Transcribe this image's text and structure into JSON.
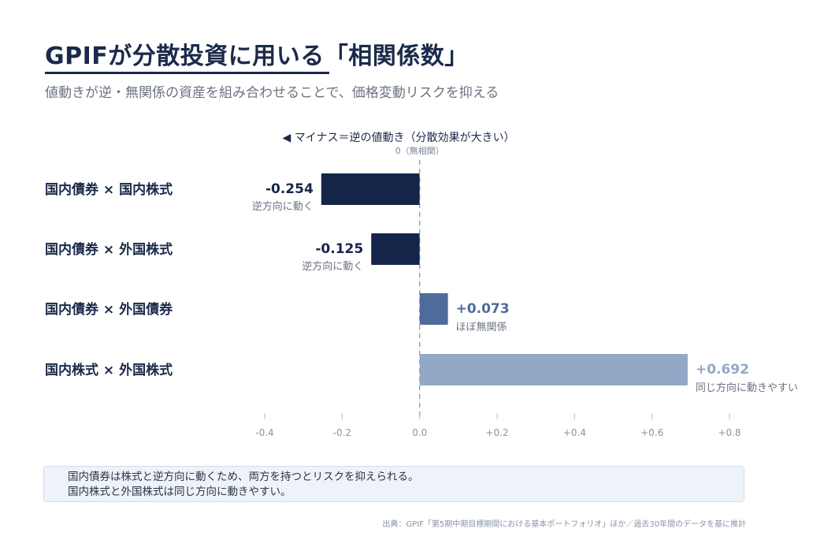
{
  "header": {
    "title": "GPIFが分散投資に用いる「相関係数」",
    "subtitle": "値動きが逆・無関係の資産を組み合わせることで、価格変動リスクを抑える"
  },
  "chart_data": {
    "type": "bar",
    "orientation": "horizontal",
    "direction_label": "◀ マイナス＝逆の値動き（分散効果が大きい）",
    "zero_label": "0（無相関）",
    "categories": [
      "国内債券 × 国内株式",
      "国内債券 × 外国株式",
      "国内債券 × 外国債券",
      "国内株式 × 外国株式"
    ],
    "values": [
      -0.254,
      -0.125,
      0.073,
      0.692
    ],
    "value_labels": [
      "-0.254",
      "-0.125",
      "+0.073",
      "+0.692"
    ],
    "annotations": [
      "逆方向に動く",
      "逆方向に動く",
      "ほぼ無関係",
      "同じ方向に動きやすい"
    ],
    "bar_colors": [
      "#15254a",
      "#15254a",
      "#4d6b9b",
      "#93a8c7"
    ],
    "value_label_colors": [
      "#15254a",
      "#15254a",
      "#4d6b9b",
      "#93a8c7"
    ],
    "xlim": [
      -0.4,
      0.8
    ],
    "xticks": [
      -0.4,
      -0.2,
      0.0,
      0.2,
      0.4,
      0.6,
      0.8
    ],
    "xtick_labels": [
      "-0.4",
      "-0.2",
      "0.0",
      "+0.2",
      "+0.4",
      "+0.6",
      "+0.8"
    ],
    "grid": false,
    "zero_line": "dashed"
  },
  "note": {
    "lines": [
      "国内債券は株式と逆方向に動くため、両方を持つとリスクを抑えられる。",
      "国内株式と外国株式は同じ方向に動きやすい。"
    ]
  },
  "source": "出典：GPIF「第5期中期目標期間における基本ポートフォリオ」ほか／過去30年間のデータを基に推計"
}
